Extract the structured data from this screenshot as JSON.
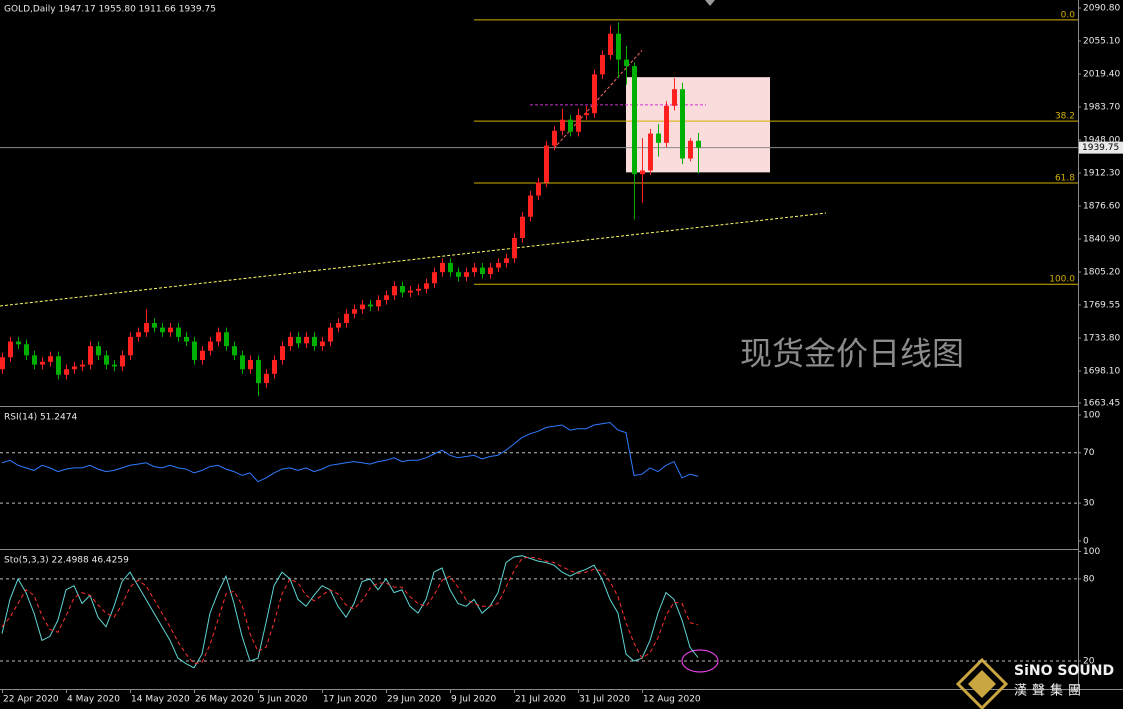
{
  "chart_data": [
    {
      "type": "candlestick",
      "title": "GOLD,Daily  1947.17 1955.80 1911.66 1939.75",
      "categories": [
        "22 Apr 2020",
        null,
        null,
        null,
        null,
        null,
        null,
        null,
        "4 May 2020",
        null,
        null,
        null,
        null,
        null,
        null,
        null,
        "14 May 2020",
        null,
        null,
        null,
        null,
        null,
        null,
        null,
        "26 May 2020",
        null,
        null,
        null,
        null,
        null,
        null,
        null,
        "5 Jun 2020",
        null,
        null,
        null,
        null,
        null,
        null,
        null,
        "17 Jun 2020",
        null,
        null,
        null,
        null,
        null,
        null,
        null,
        "29 Jun 2020",
        null,
        null,
        null,
        null,
        null,
        null,
        null,
        "9 Jul 2020",
        null,
        null,
        null,
        null,
        null,
        null,
        null,
        "21 Jul 2020",
        null,
        null,
        null,
        null,
        null,
        null,
        null,
        "31 Jul 2020",
        null,
        null,
        null,
        null,
        null,
        null,
        null,
        "12 Aug 2020",
        null,
        null,
        null,
        null,
        null,
        null,
        null
      ],
      "open": [
        1700,
        1713,
        1730,
        1727,
        1715,
        1705,
        1708,
        1714,
        1694,
        1700,
        1703,
        1705,
        1725,
        1715,
        1705,
        1703,
        1715,
        1735,
        1740,
        1750,
        1745,
        1740,
        1745,
        1735,
        1730,
        1710,
        1720,
        1730,
        1740,
        1725,
        1715,
        1700,
        1710,
        1685,
        1695,
        1710,
        1725,
        1735,
        1728,
        1735,
        1725,
        1730,
        1745,
        1750,
        1760,
        1765,
        1770,
        1768,
        1775,
        1780,
        1790,
        1783,
        1785,
        1787,
        1793,
        1805,
        1815,
        1805,
        1800,
        1805,
        1810,
        1803,
        1810,
        1815,
        1820,
        1842,
        1865,
        1888,
        1902,
        1942,
        1958,
        1970,
        1957,
        1975,
        1977,
        2019,
        2040,
        2063,
        2035,
        2028,
        1911,
        1915,
        1955,
        1945,
        1985,
        2003,
        1928,
        1947.17
      ],
      "high": [
        1718,
        1735,
        1735,
        1732,
        1720,
        1713,
        1719,
        1719,
        1705,
        1708,
        1710,
        1730,
        1730,
        1720,
        1710,
        1720,
        1740,
        1745,
        1765,
        1755,
        1750,
        1750,
        1750,
        1740,
        1735,
        1725,
        1735,
        1745,
        1745,
        1730,
        1720,
        1715,
        1715,
        1700,
        1715,
        1730,
        1740,
        1740,
        1740,
        1740,
        1735,
        1750,
        1755,
        1765,
        1770,
        1775,
        1775,
        1780,
        1785,
        1795,
        1795,
        1790,
        1792,
        1798,
        1810,
        1820,
        1820,
        1810,
        1810,
        1815,
        1815,
        1815,
        1820,
        1825,
        1847,
        1870,
        1893,
        1907,
        1947,
        1963,
        1982,
        1975,
        1982,
        1985,
        2024,
        2045,
        2072,
        2075,
        2050,
        2032,
        1950,
        1960,
        1965,
        1990,
        2015,
        2010,
        1950,
        1955.8
      ],
      "low": [
        1695,
        1708,
        1722,
        1710,
        1700,
        1700,
        1703,
        1689,
        1689,
        1695,
        1698,
        1700,
        1710,
        1700,
        1698,
        1698,
        1710,
        1730,
        1735,
        1740,
        1735,
        1735,
        1730,
        1725,
        1705,
        1705,
        1715,
        1725,
        1720,
        1710,
        1695,
        1695,
        1671,
        1680,
        1690,
        1705,
        1720,
        1723,
        1723,
        1720,
        1720,
        1725,
        1740,
        1745,
        1755,
        1760,
        1763,
        1763,
        1770,
        1775,
        1778,
        1778,
        1780,
        1782,
        1788,
        1800,
        1800,
        1795,
        1795,
        1800,
        1798,
        1798,
        1805,
        1810,
        1815,
        1837,
        1860,
        1883,
        1897,
        1937,
        1953,
        1952,
        1952,
        1970,
        1972,
        2014,
        2035,
        2015,
        2008,
        1862,
        1880,
        1910,
        1930,
        1940,
        1980,
        1922,
        1925,
        1911.66
      ],
      "close": [
        1713,
        1730,
        1727,
        1715,
        1705,
        1708,
        1714,
        1694,
        1700,
        1703,
        1705,
        1725,
        1715,
        1705,
        1703,
        1715,
        1735,
        1740,
        1750,
        1745,
        1740,
        1745,
        1735,
        1730,
        1710,
        1720,
        1730,
        1740,
        1725,
        1715,
        1700,
        1710,
        1685,
        1695,
        1710,
        1725,
        1735,
        1728,
        1735,
        1725,
        1730,
        1745,
        1750,
        1760,
        1765,
        1770,
        1768,
        1775,
        1780,
        1790,
        1783,
        1785,
        1787,
        1793,
        1805,
        1815,
        1805,
        1800,
        1805,
        1810,
        1803,
        1810,
        1815,
        1820,
        1842,
        1865,
        1888,
        1902,
        1942,
        1958,
        1970,
        1957,
        1975,
        1977,
        2019,
        2040,
        2063,
        2035,
        2028,
        1911,
        1915,
        1955,
        1945,
        1985,
        2003,
        1928,
        1947.17,
        1939.75
      ],
      "up_color": "#ff2020",
      "down_color": "#00b000",
      "ylim": [
        1661.3,
        2099.5
      ],
      "yticks": [
        {
          "value": 2090.8,
          "label": "2090.80"
        },
        {
          "value": 2055.1,
          "label": "2055.10"
        },
        {
          "value": 2019.4,
          "label": "2019.40"
        },
        {
          "value": 1983.7,
          "label": "1983.70"
        },
        {
          "value": 1948,
          "label": "1948.00"
        },
        {
          "value": 1912.3,
          "label": "1912.30"
        },
        {
          "value": 1876.6,
          "label": "1876.60"
        },
        {
          "value": 1840.9,
          "label": "1840.90"
        },
        {
          "value": 1805.2,
          "label": "1805.20"
        },
        1769.55,
        {
          "value": 1733.8,
          "label": "1733.80"
        },
        {
          "value": 1698.1,
          "label": "1698.10"
        },
        1663.45
      ],
      "last_price": 1939.75,
      "fib_x": 59,
      "fib_color": "#d4b000",
      "fib": [
        {
          "label": "0.0",
          "price": 2078
        },
        {
          "label": "38.2",
          "price": 1968.5
        },
        {
          "label": "61.8",
          "price": 1901.5
        },
        {
          "label": "100.0",
          "price": 1792
        }
      ],
      "box": {
        "from": [
          78,
          2016
        ],
        "to": [
          96,
          1913
        ],
        "color": "#fbdcdc"
      },
      "trendlines": [
        {
          "from": [
            -0.25,
            1768.4
          ],
          "to": [
            103,
            1869
          ],
          "color": "#ffff66"
        },
        {
          "from": [
            66,
            1986
          ],
          "to": [
            88,
            1986
          ],
          "color": "#cc33cc"
        },
        {
          "from": [
            69,
            1939
          ],
          "to": [
            80,
            2045
          ],
          "color": "#ff6666"
        }
      ],
      "annotation": "现货金价日线图",
      "watermark": [
        "SiNO SOUND",
        "漢聲集團"
      ]
    },
    {
      "type": "line",
      "title": "RSI(14) 51.2474",
      "series": [
        {
          "color": "#2f7bff",
          "values": [
            62,
            64,
            60,
            58,
            56,
            60,
            58,
            55,
            57,
            58,
            58,
            60,
            57,
            55,
            56,
            58,
            60,
            61,
            62,
            59,
            58,
            60,
            58,
            57,
            54,
            56,
            59,
            60,
            57,
            55,
            52,
            54,
            47,
            50,
            54,
            57,
            58,
            56,
            58,
            55,
            57,
            60,
            61,
            62,
            63,
            62,
            61,
            63,
            64,
            66,
            63,
            64,
            64,
            66,
            69,
            72,
            68,
            66,
            67,
            68,
            65,
            67,
            68,
            72,
            77,
            82,
            85,
            87,
            90,
            91,
            92,
            88,
            89,
            89,
            92,
            93,
            94,
            88,
            86,
            52,
            53,
            58,
            55,
            60,
            63,
            50,
            53,
            51.2474
          ]
        }
      ],
      "ylim": [
        -5.6,
        105.5
      ],
      "yticks": [
        100,
        70,
        30,
        0
      ],
      "dashed_levels": [
        70,
        30
      ]
    },
    {
      "type": "line",
      "title": "Sto(5,3,3) 22.4988 46.4259",
      "series": [
        {
          "color": "#5fd6d6",
          "values": [
            40,
            65,
            80,
            70,
            55,
            35,
            38,
            50,
            72,
            75,
            62,
            68,
            52,
            45,
            60,
            78,
            85,
            75,
            65,
            55,
            45,
            35,
            22,
            18,
            15,
            25,
            55,
            70,
            82,
            62,
            38,
            20,
            22,
            48,
            75,
            85,
            80,
            65,
            60,
            68,
            75,
            72,
            60,
            52,
            62,
            78,
            80,
            72,
            80,
            70,
            72,
            60,
            55,
            65,
            85,
            88,
            72,
            62,
            60,
            65,
            55,
            60,
            70,
            92,
            96,
            97,
            95,
            93,
            92,
            90,
            85,
            82,
            85,
            87,
            90,
            80,
            65,
            55,
            25,
            20,
            22,
            35,
            55,
            70,
            65,
            50,
            30,
            22.4988
          ]
        },
        {
          "color": "#ff3030",
          "dash": true,
          "values": [
            45,
            52,
            62,
            72,
            68,
            53,
            43,
            41,
            53,
            66,
            70,
            68,
            61,
            55,
            52,
            61,
            74,
            79,
            75,
            65,
            55,
            45,
            34,
            25,
            18,
            19,
            32,
            50,
            69,
            71,
            61,
            40,
            27,
            30,
            48,
            69,
            80,
            77,
            68,
            64,
            68,
            72,
            69,
            61,
            58,
            64,
            73,
            77,
            77,
            74,
            74,
            67,
            62,
            60,
            68,
            79,
            82,
            74,
            65,
            62,
            60,
            60,
            62,
            74,
            86,
            95,
            96,
            95,
            93,
            92,
            89,
            86,
            84,
            85,
            87,
            86,
            78,
            67,
            48,
            33,
            22,
            26,
            37,
            53,
            63,
            62,
            48,
            46.4259
          ]
        }
      ],
      "ylim": [
        -0.5,
        100.4
      ],
      "yticks": [
        100,
        80,
        20
      ],
      "dashed_levels": [
        80,
        20
      ]
    }
  ]
}
